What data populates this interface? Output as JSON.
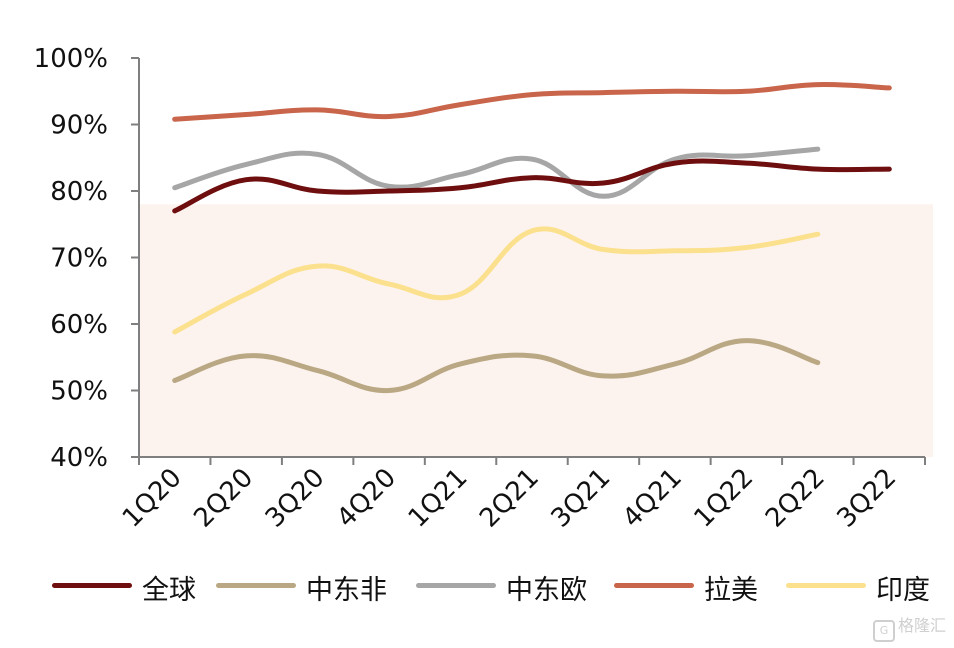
{
  "chart_data": {
    "type": "line",
    "categories": [
      "1Q20",
      "2Q20",
      "3Q20",
      "4Q20",
      "1Q21",
      "2Q21",
      "3Q21",
      "4Q21",
      "1Q22",
      "2Q22",
      "3Q22"
    ],
    "y_ticks": [
      "40%",
      "50%",
      "60%",
      "70%",
      "80%",
      "90%",
      "100%"
    ],
    "ylim": [
      40,
      100
    ],
    "y_unit": "%",
    "grid": false,
    "legend_position": "bottom",
    "series": [
      {
        "name": "全球",
        "color": "#6e0e0e",
        "values": [
          77,
          81.7,
          80,
          80,
          80.5,
          82,
          81.2,
          84.2,
          84.2,
          83.3,
          83.3
        ]
      },
      {
        "name": "中东非",
        "color": "#b9a883",
        "values": [
          51.5,
          55.2,
          53,
          50,
          54,
          55.2,
          52.2,
          54,
          57.5,
          54.2,
          null
        ]
      },
      {
        "name": "中东欧",
        "color": "#a6a6a6",
        "values": [
          80.5,
          84,
          85.5,
          80.7,
          82.5,
          84.8,
          79.2,
          84.8,
          85.3,
          86.3,
          null
        ]
      },
      {
        "name": "拉美",
        "color": "#c8654a",
        "values": [
          90.8,
          91.5,
          92.2,
          91.2,
          93,
          94.5,
          94.8,
          95,
          95,
          96,
          95.5
        ]
      },
      {
        "name": "印度",
        "color": "#fbe08e",
        "values": [
          58.8,
          64.5,
          68.7,
          66,
          64.5,
          74,
          71.2,
          71,
          71.5,
          73.5,
          null
        ]
      }
    ],
    "shaded_band": {
      "ymin": 40,
      "ymax": 78,
      "color": "#fdf3ee"
    }
  },
  "watermark": {
    "logo": "G",
    "text": "格隆汇"
  }
}
